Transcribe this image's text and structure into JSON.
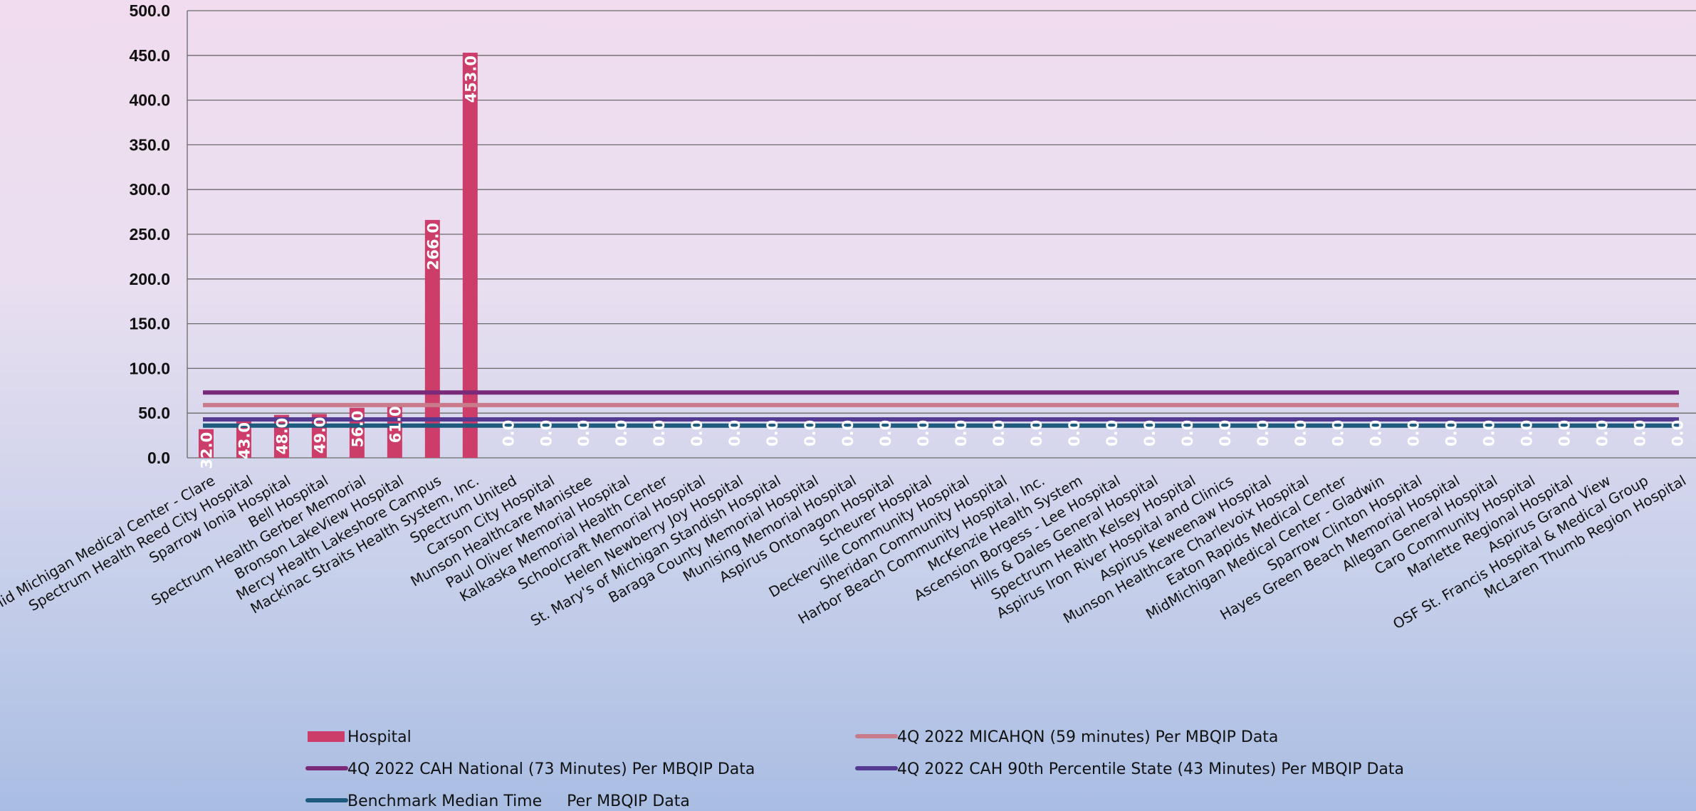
{
  "chart_data": {
    "type": "bar",
    "ylim": [
      0,
      500
    ],
    "yticks": [
      "0.0",
      "50.0",
      "100.0",
      "150.0",
      "200.0",
      "250.0",
      "300.0",
      "350.0",
      "400.0",
      "450.0",
      "500.0"
    ],
    "grid": true,
    "legend_position": "bottom",
    "categories": [
      "Mid Michigan Medical Center - Clare",
      "Spectrum Health Reed City Hospital",
      "Sparrow Ionia Hospital",
      "Bell Hospital",
      "Spectrum Health Gerber Memorial",
      "Bronson LakeView Hospital",
      "Mercy Health Lakeshore Campus",
      "Mackinac Straits Health System, Inc.",
      "Spectrum United",
      "Carson City Hospital",
      "Munson Healthcare Manistee",
      "Paul Oliver Memorial Hospital",
      "Kalkaska Memorial Health Center",
      "Schoolcraft Memorial Hospital",
      "Helen Newberry Joy Hospital",
      "St. Mary's of Michigan Standish Hospital",
      "Baraga County Memorial Hospital",
      "Munising Memorial Hospital",
      "Aspirus Ontonagon Hospital",
      "Scheurer Hospital",
      "Deckerville Community Hospital",
      "Sheridan Community Hospital",
      "Harbor Beach Community Hospital, Inc.",
      "McKenzie Health System",
      "Ascension Borgess - Lee Hospital",
      "Hills & Dales General Hospital",
      "Spectrum Health Kelsey Hospital",
      "Aspirus Iron River Hospital and Clinics",
      "Aspirus Keweenaw Hospital",
      "Munson Healthcare Charlevoix Hospital",
      "Eaton Rapids Medical Center",
      "MidMichigan Medical Center - Gladwin",
      "Sparrow Clinton Hospital",
      "Hayes Green Beach Memorial Hospital",
      "Allegan General Hospital",
      "Caro Community Hospital",
      "Marlette Regional Hospital",
      "Aspirus Grand View",
      "OSF St. Francis Hospital & Medical Group",
      "McLaren Thumb Region Hospital"
    ],
    "series": [
      {
        "name": "Hospital",
        "type": "bar",
        "color": "#cc3d6a",
        "values": [
          32,
          43,
          48,
          49,
          56,
          61,
          266,
          453,
          0,
          0,
          0,
          0,
          0,
          0,
          0,
          0,
          0,
          0,
          0,
          0,
          0,
          0,
          0,
          0,
          0,
          0,
          0,
          0,
          0,
          0,
          0,
          0,
          0,
          0,
          0,
          0,
          0,
          0,
          0,
          0
        ],
        "labels": [
          "32.0",
          "43.0",
          "48.0",
          "49.0",
          "56.0",
          "61.0",
          "266.0",
          "453.0",
          "0.0",
          "0.0",
          "0.0",
          "0.0",
          "0.0",
          "0.0",
          "0.0",
          "0.0",
          "0.0",
          "0.0",
          "0.0",
          "0.0",
          "0.0",
          "0.0",
          "0.0",
          "0.0",
          "0.0",
          "0.0",
          "0.0",
          "0.0",
          "0.0",
          "0.0",
          "0.0",
          "0.0",
          "0.0",
          "0.0",
          "0.0",
          "0.0",
          "0.0",
          "0.0",
          "0.0",
          "0.0"
        ]
      },
      {
        "name": "4Q 2022 MICAHQN (59 minutes) Per MBQIP Data",
        "type": "line",
        "color": "#c97b8c",
        "value": 59
      },
      {
        "name": "4Q 2022 CAH National (73 Minutes) Per MBQIP Data",
        "type": "line",
        "color": "#7a2a78",
        "value": 73
      },
      {
        "name": "4Q 2022 CAH 90th Percentile State (43 Minutes) Per MBQIP Data",
        "type": "line",
        "color": "#553a92",
        "value": 43
      },
      {
        "name": "Benchmark Median Time     Per MBQIP Data",
        "type": "line",
        "color": "#1e5a7e",
        "value": 36
      }
    ]
  }
}
